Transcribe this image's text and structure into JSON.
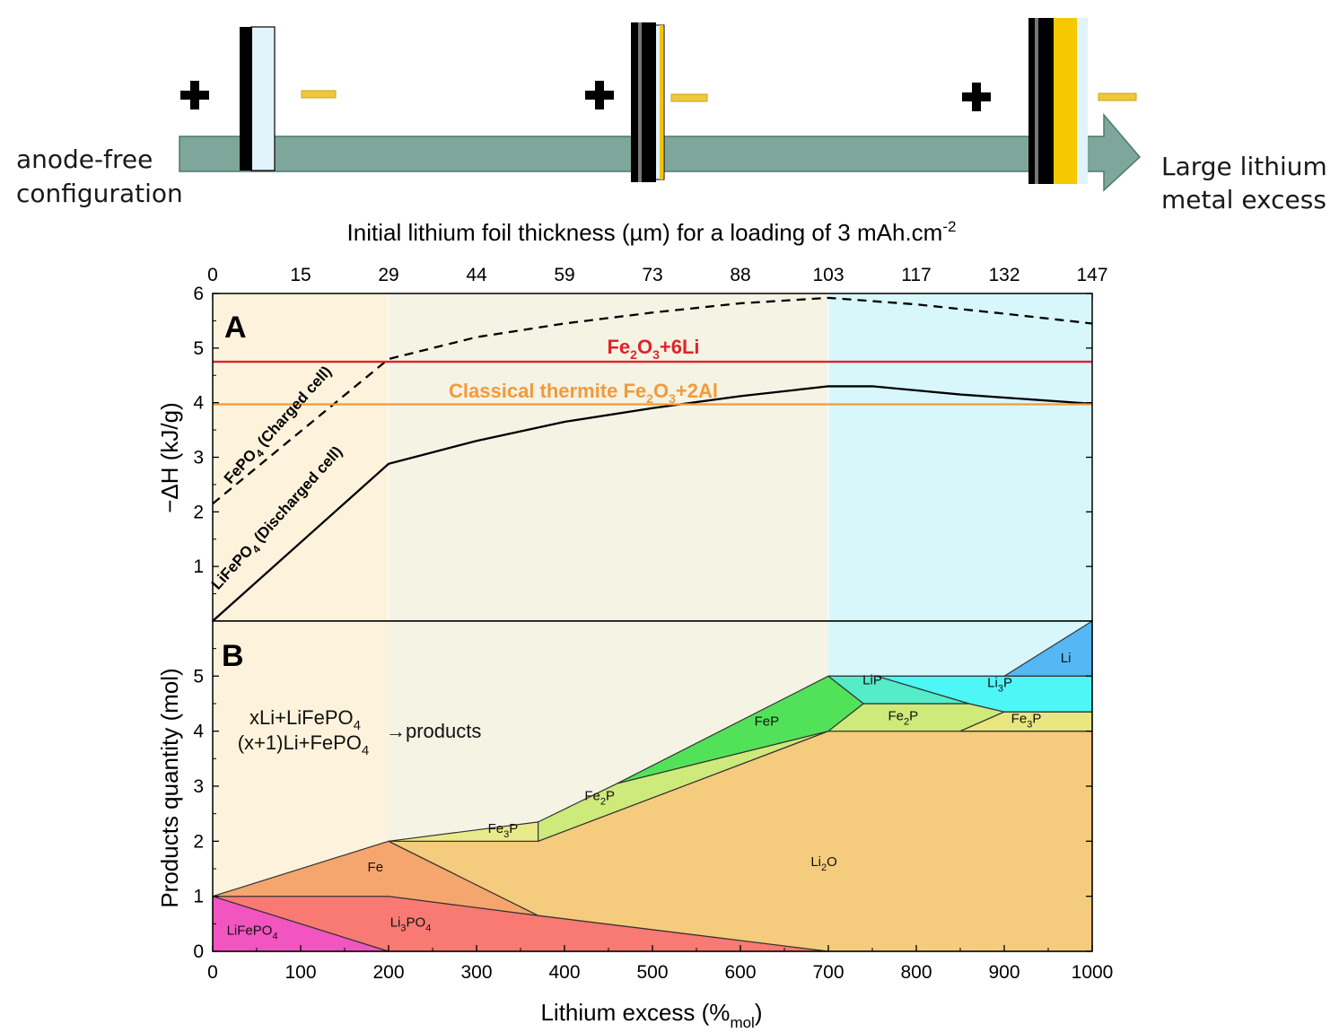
{
  "schematic": {
    "left_label": [
      "anode-free",
      "configuration"
    ],
    "right_label": [
      "Large lithium",
      "metal excess"
    ],
    "plus_symbol": "+",
    "minus_symbol": "−"
  },
  "chart_data": [
    {
      "type": "line",
      "panel_label": "A",
      "top_xlabel": "Initial lithium foil thickness (µm) for a loading of 3 mAh.cm-2",
      "top_xticks": [
        0,
        15,
        29,
        44,
        59,
        73,
        88,
        103,
        117,
        132,
        147
      ],
      "xlim": [
        0,
        1000
      ],
      "ylim": [
        0,
        6
      ],
      "yticks": [
        1,
        2,
        3,
        4,
        5,
        6
      ],
      "ylabel": "−ΔH (kJ/g)",
      "regions": [
        {
          "x": [
            0,
            200
          ],
          "color": "#fdf3dc"
        },
        {
          "x": [
            200,
            700
          ],
          "color": "#f4f3e4"
        },
        {
          "x": [
            700,
            1000
          ],
          "color": "#d8f7fa"
        }
      ],
      "series": [
        {
          "name": "FePO4 (Charged cell)",
          "style": "dashed",
          "color": "#000000",
          "x": [
            0,
            200,
            300,
            400,
            500,
            600,
            700,
            800,
            900,
            1000
          ],
          "y": [
            2.15,
            4.8,
            5.2,
            5.45,
            5.65,
            5.82,
            5.92,
            5.8,
            5.63,
            5.45
          ]
        },
        {
          "name": "LiFePO4 (Discharged cell)",
          "style": "solid",
          "color": "#000000",
          "x": [
            0,
            200,
            300,
            400,
            500,
            600,
            700,
            750,
            850,
            1000
          ],
          "y": [
            0,
            2.88,
            3.3,
            3.65,
            3.9,
            4.12,
            4.3,
            4.3,
            4.15,
            3.98
          ]
        },
        {
          "name": "Fe2O3+6Li",
          "style": "solid",
          "color": "#e0232a",
          "x": [
            0,
            1000
          ],
          "y": [
            4.75,
            4.75
          ]
        },
        {
          "name": "Classical thermite Fe2O3+2Al",
          "style": "solid",
          "color": "#f39a3a",
          "x": [
            0,
            1000
          ],
          "y": [
            3.97,
            3.97
          ]
        }
      ],
      "annotations": [
        "Fe2O3+6Li",
        "Classical thermite Fe2O3+2Al",
        "FePO4 (Charged cell)",
        "LiFePO4 (Discharged cell)"
      ]
    },
    {
      "type": "area",
      "panel_label": "B",
      "xlabel": "Lithium excess (%mol)",
      "ylabel": "Products quantity (mol)",
      "xlim": [
        0,
        1000
      ],
      "ylim": [
        0,
        6
      ],
      "xticks": [
        0,
        100,
        200,
        300,
        400,
        500,
        600,
        700,
        800,
        900,
        1000
      ],
      "yticks": [
        0,
        1,
        2,
        3,
        4,
        5
      ],
      "reaction_text": {
        "line1": "xLi+LiFePO4",
        "line2": "(x+1)Li+FePO4",
        "arrow": "→products"
      },
      "regions": [
        {
          "name": "LiFePO4",
          "color": "#f355c0",
          "points": [
            [
              0,
              0
            ],
            [
              0,
              1
            ],
            [
              200,
              0
            ]
          ]
        },
        {
          "name": "Li3PO4",
          "color": "#f87a72",
          "points": [
            [
              0,
              1
            ],
            [
              200,
              1
            ],
            [
              370,
              0.65
            ],
            [
              700,
              0
            ],
            [
              200,
              0
            ]
          ]
        },
        {
          "name": "Fe",
          "color": "#f4a66e",
          "points": [
            [
              0,
              1
            ],
            [
              200,
              2
            ],
            [
              370,
              0.65
            ],
            [
              200,
              1
            ]
          ]
        },
        {
          "name": "Li2O",
          "color": "#f5cb7d",
          "points": [
            [
              200,
              2
            ],
            [
              370,
              2
            ],
            [
              700,
              4
            ],
            [
              1000,
              4
            ],
            [
              1000,
              0
            ],
            [
              700,
              0
            ],
            [
              370,
              0.65
            ]
          ]
        },
        {
          "name": "Fe3P",
          "color": "#eaea8a",
          "points": [
            [
              200,
              2
            ],
            [
              370,
              2.35
            ],
            [
              370,
              2
            ]
          ]
        },
        {
          "name": "Fe3P ",
          "color": "#e8e680",
          "points": [
            [
              370,
              2
            ],
            [
              370,
              2.35
            ],
            [
              460,
              3
            ],
            [
              370,
              2
            ]
          ]
        },
        {
          "name": "Fe2P",
          "color": "#cdea7a",
          "points": [
            [
              370,
              2
            ],
            [
              370,
              2.35
            ],
            [
              460,
              3.05
            ],
            [
              700,
              4
            ]
          ]
        },
        {
          "name": "FeP",
          "color": "#52e25a",
          "points": [
            [
              460,
              3.05
            ],
            [
              700,
              5
            ],
            [
              740,
              4.5
            ],
            [
              700,
              4
            ]
          ]
        },
        {
          "name": "Fe2P ",
          "color": "#cdea7a",
          "points": [
            [
              700,
              4
            ],
            [
              740,
              4.5
            ],
            [
              860,
              4.5
            ],
            [
              900,
              4.35
            ],
            [
              850,
              4
            ]
          ]
        },
        {
          "name": "Fe3P  ",
          "color": "#e8e680",
          "points": [
            [
              850,
              4
            ],
            [
              900,
              4.35
            ],
            [
              1000,
              4.35
            ],
            [
              1000,
              4
            ]
          ]
        },
        {
          "name": "LiP",
          "color": "#55ecc9",
          "points": [
            [
              700,
              5
            ],
            [
              755,
              5
            ],
            [
              860,
              4.5
            ],
            [
              740,
              4.5
            ]
          ]
        },
        {
          "name": "Li3P",
          "color": "#4ff6f6",
          "points": [
            [
              755,
              5
            ],
            [
              900,
              5
            ],
            [
              1000,
              5
            ],
            [
              1000,
              4.35
            ],
            [
              900,
              4.35
            ],
            [
              860,
              4.5
            ]
          ]
        },
        {
          "name": "Li",
          "color": "#55b7f4",
          "points": [
            [
              900,
              5
            ],
            [
              1000,
              6
            ],
            [
              1000,
              5
            ]
          ]
        }
      ],
      "region_labels": [
        {
          "text": "LiFePO4",
          "x": 45,
          "y": 0.3
        },
        {
          "text": "Li3PO4",
          "x": 225,
          "y": 0.45
        },
        {
          "text": "Fe",
          "x": 185,
          "y": 1.45
        },
        {
          "text": "Li2O",
          "x": 695,
          "y": 1.55
        },
        {
          "text": "Fe3P",
          "x": 330,
          "y": 2.15
        },
        {
          "text": "Fe2P",
          "x": 440,
          "y": 2.75
        },
        {
          "text": "FeP",
          "x": 630,
          "y": 4.1
        },
        {
          "text": "LiP",
          "x": 750,
          "y": 4.85
        },
        {
          "text": "Fe2P",
          "x": 785,
          "y": 4.2
        },
        {
          "text": "Li3P",
          "x": 895,
          "y": 4.8
        },
        {
          "text": "Fe3P",
          "x": 925,
          "y": 4.15
        },
        {
          "text": "Li",
          "x": 970,
          "y": 5.25
        }
      ]
    }
  ]
}
